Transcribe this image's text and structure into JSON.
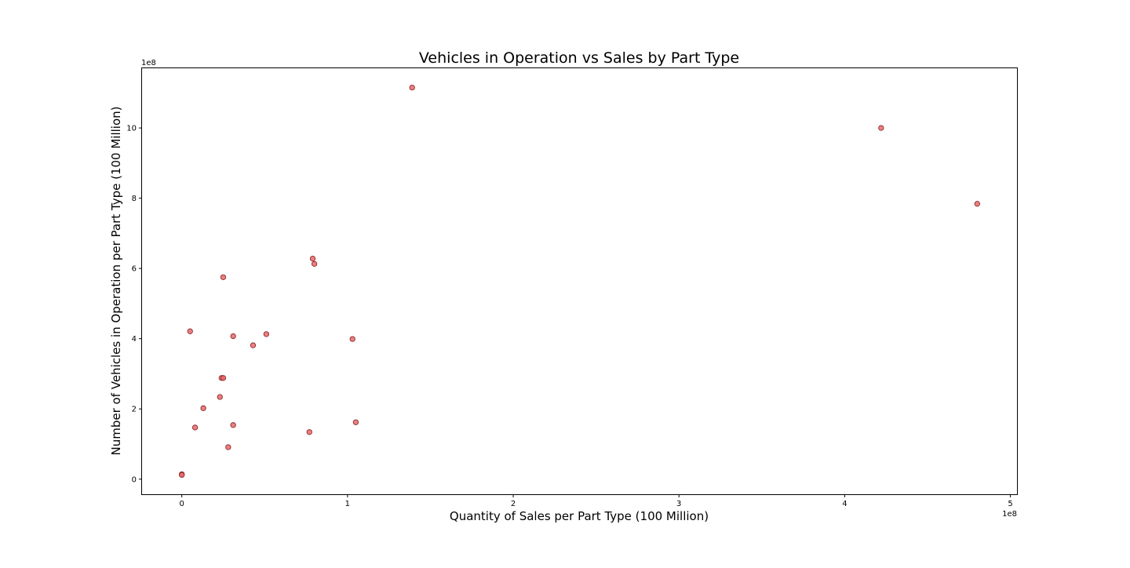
{
  "chart_data": {
    "type": "scatter",
    "title": "Vehicles in Operation vs Sales by Part Type",
    "xlabel": "Quantity of Sales per Part Type (100 Million)",
    "ylabel": "Number of Vehicles in Operation per Part Type (100 Million)",
    "x_offset_text": "1e8",
    "y_offset_text": "1e8",
    "xlim": [
      -0.24,
      5.04
    ],
    "ylim": [
      -0.43,
      11.7
    ],
    "x_ticks": [
      0,
      1,
      2,
      3,
      4,
      5
    ],
    "x_tick_labels": [
      "0",
      "1",
      "2",
      "3",
      "4",
      "5"
    ],
    "y_ticks": [
      0,
      2,
      4,
      6,
      8,
      10
    ],
    "y_tick_labels": [
      "0",
      "2",
      "4",
      "6",
      "8",
      "10"
    ],
    "grid": false,
    "marker_color": "#e8696b",
    "marker_edge_color": "#8b2a2a",
    "points": [
      {
        "x": 1.39,
        "y": 11.15
      },
      {
        "x": 4.22,
        "y": 10.0
      },
      {
        "x": 4.8,
        "y": 7.84
      },
      {
        "x": 0.79,
        "y": 6.28
      },
      {
        "x": 0.8,
        "y": 6.13
      },
      {
        "x": 0.25,
        "y": 5.75
      },
      {
        "x": 0.05,
        "y": 4.21
      },
      {
        "x": 0.51,
        "y": 4.13
      },
      {
        "x": 0.31,
        "y": 4.07
      },
      {
        "x": 0.43,
        "y": 3.81
      },
      {
        "x": 1.03,
        "y": 3.99
      },
      {
        "x": 0.24,
        "y": 2.88
      },
      {
        "x": 0.25,
        "y": 2.88
      },
      {
        "x": 0.23,
        "y": 2.34
      },
      {
        "x": 0.13,
        "y": 2.02
      },
      {
        "x": 0.31,
        "y": 1.54
      },
      {
        "x": 1.05,
        "y": 1.62
      },
      {
        "x": 0.08,
        "y": 1.47
      },
      {
        "x": 0.77,
        "y": 1.34
      },
      {
        "x": 0.28,
        "y": 0.91
      },
      {
        "x": 0.0,
        "y": 0.14
      },
      {
        "x": 0.0,
        "y": 0.12
      }
    ]
  }
}
